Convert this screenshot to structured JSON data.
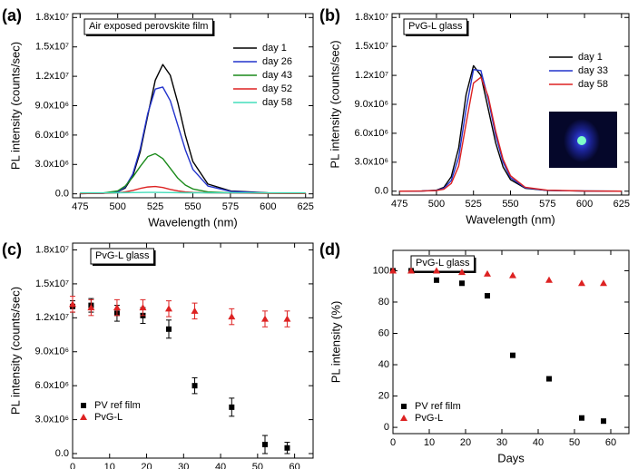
{
  "chart_data": [
    {
      "type": "line",
      "panel": "(a)",
      "inset_label": "Air exposed perovskite film",
      "xlabel": "Wavelength (nm)",
      "ylabel": "PL intensity (counts/sec)",
      "legend": "upper right",
      "x": [
        475,
        490,
        500,
        505,
        510,
        515,
        520,
        525,
        530,
        535,
        540,
        545,
        550,
        560,
        575,
        600,
        625
      ],
      "series": [
        {
          "name": "day 1",
          "color": "#000000",
          "values": [
            20000,
            60000,
            200000,
            600000,
            1800000,
            4300000,
            8000000,
            11600000,
            13200000,
            12100000,
            9300000,
            6000000,
            3300000,
            1000000,
            300000,
            100000,
            50000
          ]
        },
        {
          "name": "day 26",
          "color": "#2233cc",
          "values": [
            20000,
            60000,
            200000,
            700000,
            2000000,
            4600000,
            8200000,
            10700000,
            10900000,
            9500000,
            7000000,
            4500000,
            2500000,
            800000,
            250000,
            80000,
            40000
          ]
        },
        {
          "name": "day 43",
          "color": "#1a8a1a",
          "values": [
            30000,
            80000,
            300000,
            800000,
            1700000,
            2800000,
            3800000,
            4100000,
            3600000,
            2600000,
            1600000,
            900000,
            500000,
            200000,
            100000,
            60000,
            40000
          ]
        },
        {
          "name": "day 52",
          "color": "#dd2222",
          "values": [
            50000,
            60000,
            100000,
            200000,
            350000,
            550000,
            700000,
            750000,
            650000,
            450000,
            300000,
            200000,
            150000,
            100000,
            80000,
            60000,
            50000
          ]
        },
        {
          "name": "day 58",
          "color": "#44ddbb",
          "values": [
            100000,
            100000,
            110000,
            120000,
            130000,
            140000,
            150000,
            150000,
            140000,
            130000,
            120000,
            110000,
            110000,
            100000,
            100000,
            100000,
            100000
          ]
        }
      ],
      "xlim": [
        470,
        630
      ],
      "ylim": [
        -400000,
        18400000
      ],
      "xticks": [
        475,
        500,
        525,
        550,
        575,
        600,
        625
      ],
      "yticks": [
        {
          "value": 0,
          "label": "0.0"
        },
        {
          "value": 3000000,
          "label": "3.0x10⁶"
        },
        {
          "value": 6000000,
          "label": "6.0x10⁶"
        },
        {
          "value": 9000000,
          "label": "9.0x10⁶"
        },
        {
          "value": 12000000,
          "label": "1.2x10⁷"
        },
        {
          "value": 15000000,
          "label": "1.5x10⁷"
        },
        {
          "value": 18000000,
          "label": "1.8x10⁷"
        }
      ]
    },
    {
      "type": "line",
      "panel": "(b)",
      "inset_label": "PvG-L glass",
      "xlabel": "Wavelength (nm)",
      "ylabel": "PL intensity (counts/sec)",
      "legend": "upper right",
      "x": [
        475,
        490,
        500,
        505,
        510,
        515,
        520,
        525,
        530,
        535,
        540,
        545,
        550,
        560,
        575,
        600,
        625
      ],
      "series": [
        {
          "name": "day 1",
          "color": "#000000",
          "values": [
            0,
            20000,
            100000,
            400000,
            1500000,
            4500000,
            10000000,
            13000000,
            12000000,
            8500000,
            5000000,
            2500000,
            1200000,
            300000,
            80000,
            20000,
            0
          ]
        },
        {
          "name": "day 33",
          "color": "#2233cc",
          "values": [
            0,
            20000,
            80000,
            300000,
            1100000,
            3500000,
            8500000,
            12600000,
            12500000,
            9500000,
            5800000,
            3000000,
            1400000,
            350000,
            80000,
            20000,
            0
          ]
        },
        {
          "name": "day 58",
          "color": "#dd2222",
          "values": [
            0,
            20000,
            60000,
            200000,
            800000,
            2600000,
            7000000,
            11200000,
            11800000,
            9800000,
            6200000,
            3300000,
            1600000,
            400000,
            100000,
            20000,
            0
          ]
        }
      ],
      "xlim": [
        470,
        630
      ],
      "ylim": [
        -400000,
        18400000
      ],
      "xticks": [
        475,
        500,
        525,
        550,
        575,
        600,
        625
      ],
      "yticks": [
        {
          "value": 0,
          "label": "0.0"
        },
        {
          "value": 3000000,
          "label": "3.0x10⁶"
        },
        {
          "value": 6000000,
          "label": "6.0x10⁶"
        },
        {
          "value": 9000000,
          "label": "9.0x10⁶"
        },
        {
          "value": 12000000,
          "label": "1.2x10⁷"
        },
        {
          "value": 15000000,
          "label": "1.5x10⁷"
        },
        {
          "value": 18000000,
          "label": "1.8x10⁷"
        }
      ]
    },
    {
      "type": "scatter",
      "panel": "(c)",
      "inset_label": "PvG-L glass",
      "xlabel": "Days",
      "ylabel": "PL intensity (counts/sec)",
      "legend": "lower left",
      "series": [
        {
          "name": "PV ref film",
          "color": "#000000",
          "marker": "square",
          "x": [
            0,
            5,
            12,
            19,
            26,
            33,
            43,
            52,
            58
          ],
          "values": [
            13000000,
            13100000,
            12400000,
            12200000,
            11000000,
            6000000,
            4100000,
            800000,
            500000
          ],
          "errors": [
            500000,
            600000,
            700000,
            700000,
            800000,
            700000,
            800000,
            800000,
            500000
          ]
        },
        {
          "name": "PvG-L",
          "color": "#dd2222",
          "marker": "triangle",
          "x": [
            0,
            5,
            12,
            19,
            26,
            33,
            43,
            52,
            58
          ],
          "values": [
            13200000,
            12900000,
            12900000,
            12900000,
            12800000,
            12600000,
            12100000,
            11900000,
            11900000
          ],
          "errors": [
            700000,
            700000,
            700000,
            700000,
            700000,
            700000,
            700000,
            700000,
            700000
          ]
        }
      ],
      "xlim": [
        0,
        65
      ],
      "ylim": [
        -400000,
        18600000
      ],
      "xticks": [
        0,
        10,
        20,
        30,
        40,
        50,
        60
      ],
      "yticks": [
        {
          "value": 0,
          "label": "0.0"
        },
        {
          "value": 3000000,
          "label": "3.0x10⁶"
        },
        {
          "value": 6000000,
          "label": "6.0x10⁶"
        },
        {
          "value": 9000000,
          "label": "9.0x10⁶"
        },
        {
          "value": 12000000,
          "label": "1.2x10⁷"
        },
        {
          "value": 15000000,
          "label": "1.5x10⁷"
        },
        {
          "value": 18000000,
          "label": "1.8x10⁷"
        }
      ]
    },
    {
      "type": "scatter",
      "panel": "(d)",
      "inset_label": "PvG-L glass",
      "xlabel": "Days",
      "ylabel": "PL intensity (%)",
      "legend": "lower left",
      "series": [
        {
          "name": "PV ref film",
          "color": "#000000",
          "marker": "square",
          "x": [
            0,
            5,
            12,
            19,
            26,
            33,
            43,
            52,
            58
          ],
          "values": [
            100,
            100,
            94,
            92,
            84,
            46,
            31,
            6,
            4
          ]
        },
        {
          "name": "PvG-L",
          "color": "#dd2222",
          "marker": "triangle",
          "x": [
            0,
            5,
            12,
            19,
            26,
            33,
            43,
            52,
            58
          ],
          "values": [
            100,
            100,
            100,
            99,
            98,
            97,
            94,
            92,
            92
          ]
        }
      ],
      "xlim": [
        0,
        65
      ],
      "ylim": [
        -4,
        113
      ],
      "xticks": [
        0,
        10,
        20,
        30,
        40,
        50,
        60
      ],
      "yticks": [
        0,
        20,
        40,
        60,
        80,
        100
      ]
    }
  ]
}
